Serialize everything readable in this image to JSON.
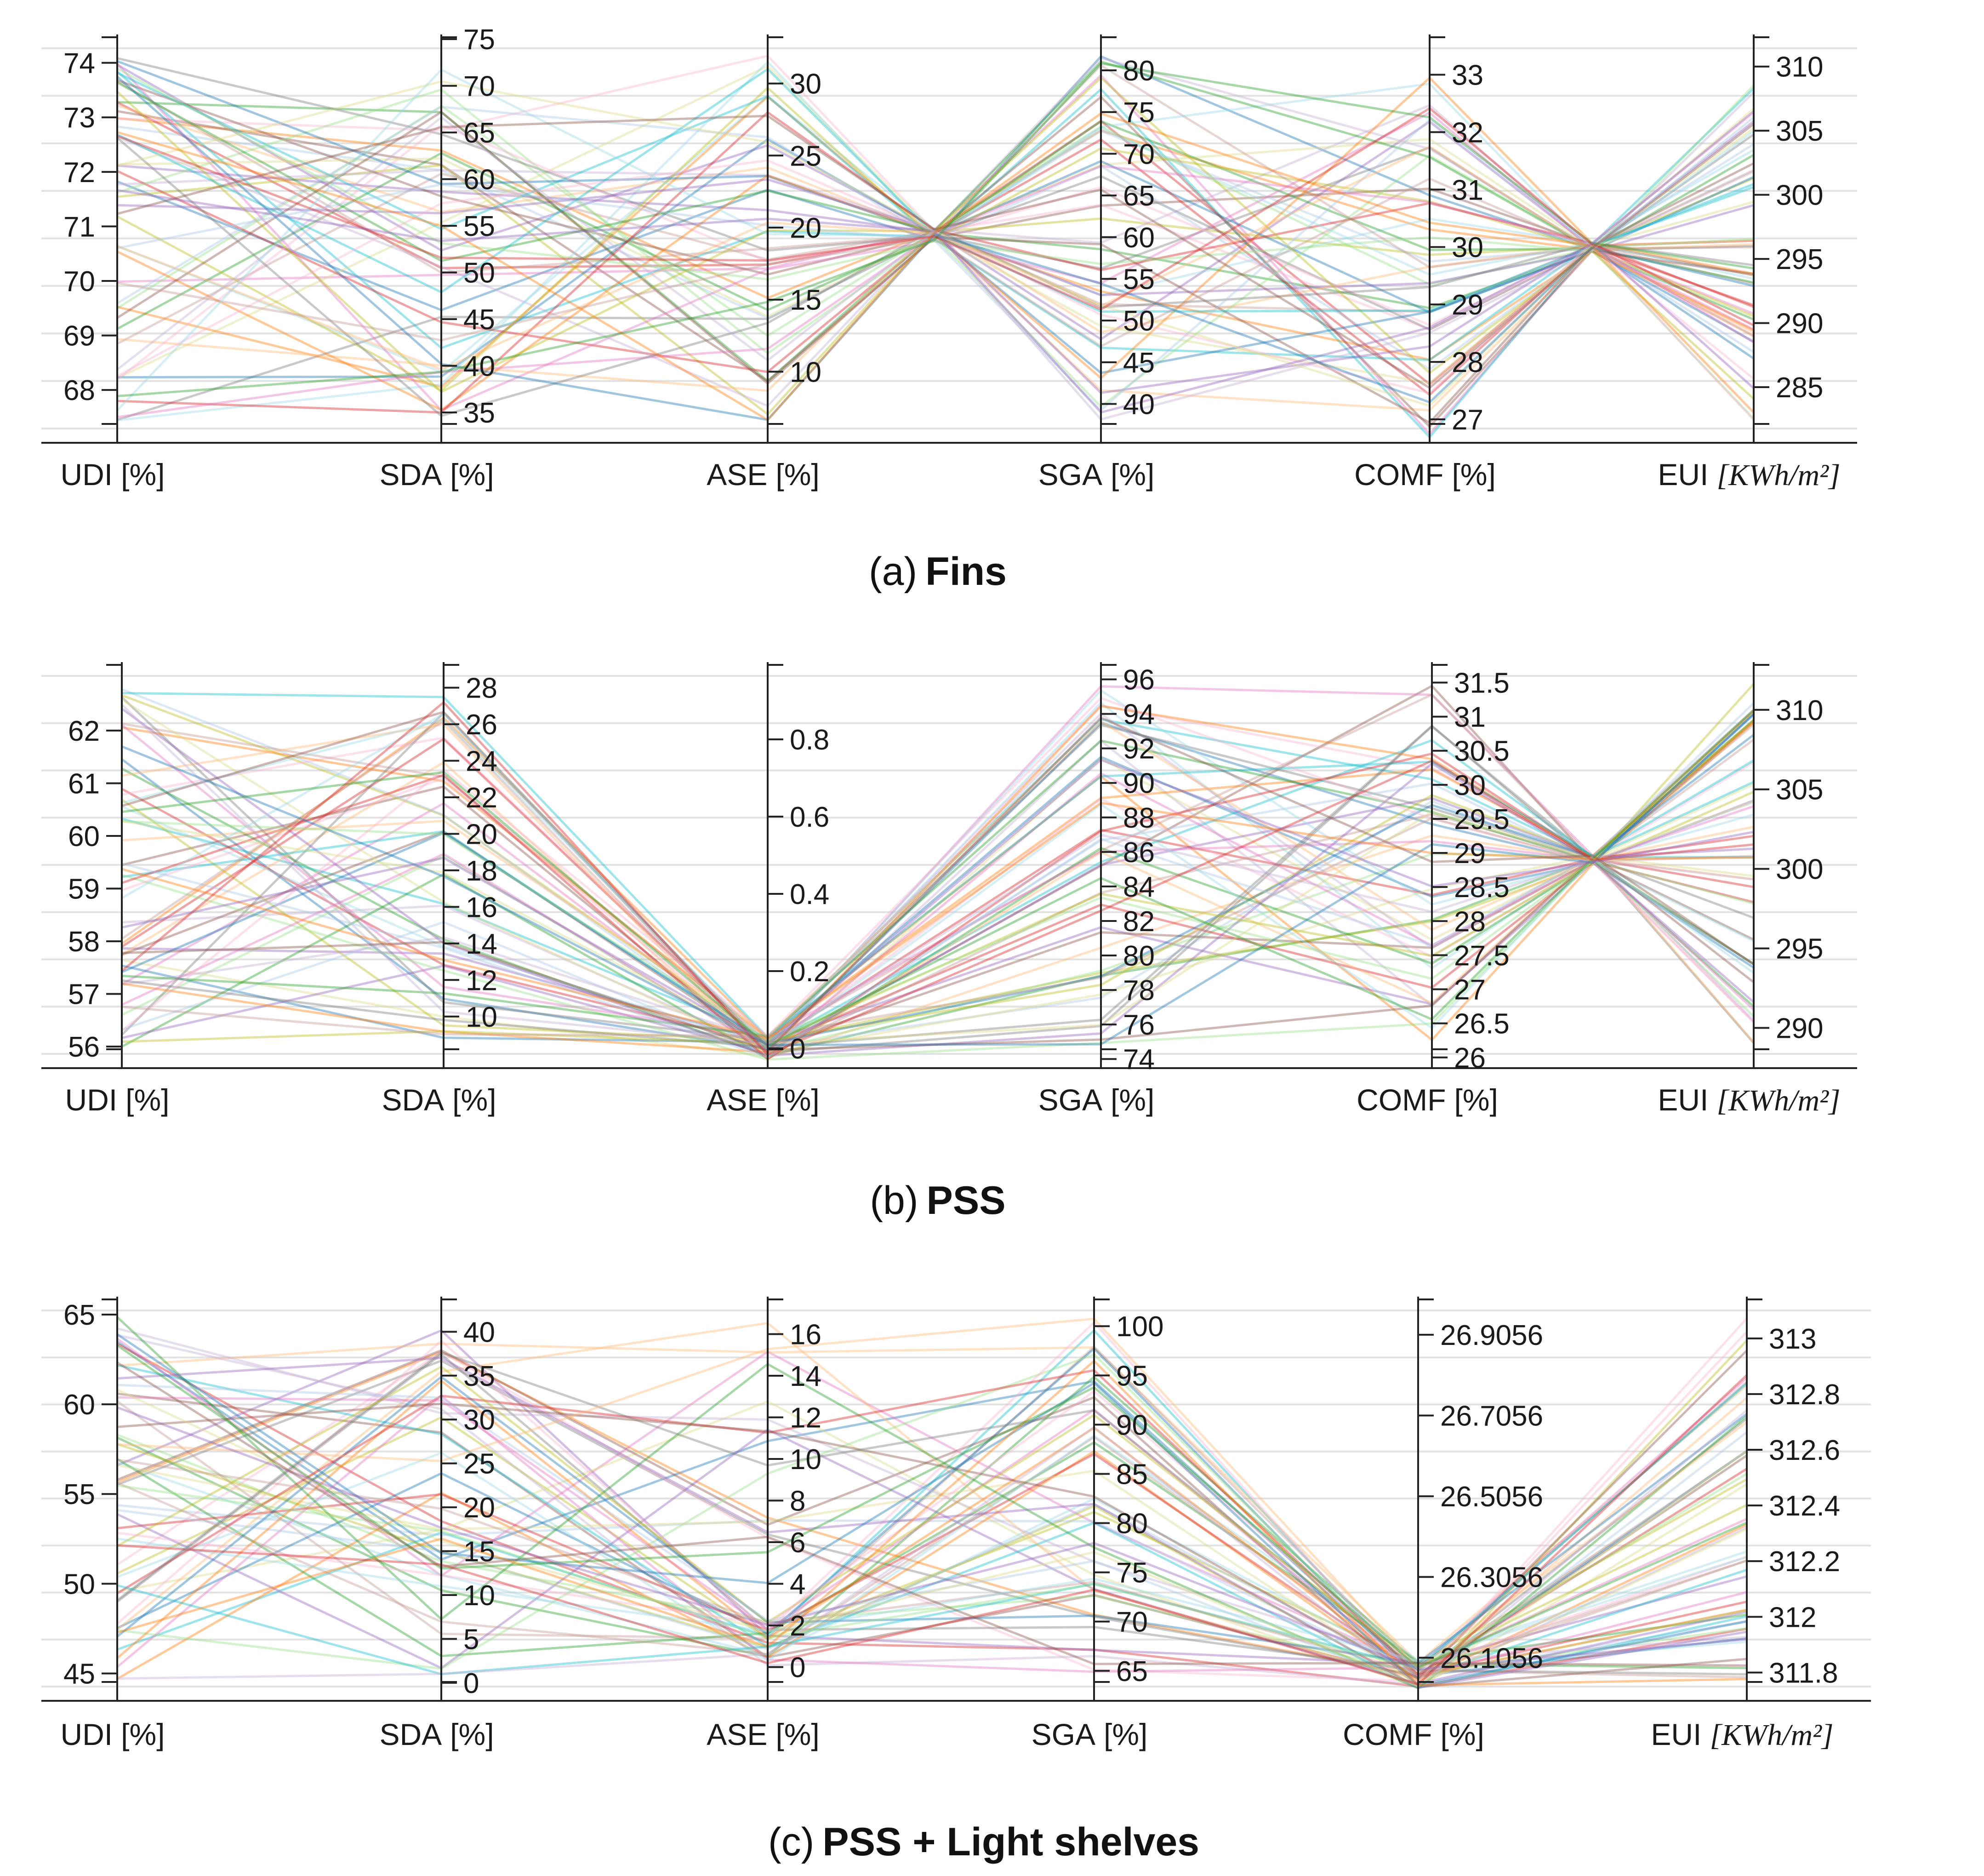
{
  "chart_data": [
    {
      "type": "parallel_coordinates",
      "caption_prefix": "(a)",
      "caption_title": "Fins",
      "axes": [
        {
          "label": "UDI",
          "unit": "[%]",
          "range": [
            67.04,
            74.52
          ],
          "ticks": [
            68,
            69,
            70,
            71,
            72,
            73,
            74
          ],
          "tick_side": "left"
        },
        {
          "label": "SDA",
          "unit": "[%]",
          "range": [
            31.8,
            75.5
          ],
          "ticks": [
            35,
            40,
            45,
            50,
            55,
            60,
            65,
            70,
            75
          ],
          "tick_side": "right"
        },
        {
          "label": "ASE",
          "unit": "[%]",
          "range": [
            5.1,
            33.4
          ],
          "ticks": [
            10,
            15,
            20,
            25,
            30
          ],
          "tick_side": "right"
        },
        {
          "label": "SGA",
          "unit": "[%]",
          "range": [
            35.4,
            84.3
          ],
          "ticks": [
            40,
            45,
            50,
            55,
            60,
            65,
            70,
            75,
            80
          ],
          "tick_side": "right"
        },
        {
          "label": "COMF",
          "unit": "[%]",
          "range": [
            26.6,
            33.7
          ],
          "ticks": [
            27,
            28,
            29,
            30,
            31,
            32,
            33
          ],
          "tick_side": "right"
        },
        {
          "label": "EUI",
          "unit": "[KWh/m²]",
          "range": [
            280.7,
            312.5
          ],
          "ticks": [
            285,
            290,
            295,
            300,
            305,
            310
          ],
          "tick_side": "right"
        }
      ],
      "samples": 60,
      "pivot_regions": [
        "ASE-SGA crossing near 20/60",
        "COMF-EUI crossing near 30/296"
      ]
    },
    {
      "type": "parallel_coordinates",
      "caption_prefix": "(b)",
      "caption_title": "PSS",
      "axes": [
        {
          "label": "UDI",
          "unit": "[%]",
          "range": [
            55.6,
            63.3
          ],
          "ticks": [
            56,
            57,
            58,
            59,
            60,
            61,
            62
          ],
          "tick_side": "left"
        },
        {
          "label": "SDA",
          "unit": "[%]",
          "range": [
            7.2,
            29.4
          ],
          "ticks": [
            10,
            12,
            14,
            16,
            18,
            20,
            22,
            24,
            26,
            28
          ],
          "tick_side": "right"
        },
        {
          "label": "ASE",
          "unit": "[%]",
          "range": [
            -0.05,
            1.0
          ],
          "ticks": [
            0,
            0.2,
            0.4,
            0.6,
            0.8
          ],
          "tick_side": "right"
        },
        {
          "label": "SGA",
          "unit": "[%]",
          "range": [
            73.5,
            97.0
          ],
          "ticks": [
            74,
            76,
            78,
            80,
            82,
            84,
            86,
            88,
            90,
            92,
            94,
            96
          ],
          "tick_side": "right"
        },
        {
          "label": "COMF",
          "unit": "[%]",
          "range": [
            25.85,
            31.8
          ],
          "ticks": [
            26,
            26.5,
            27,
            27.5,
            28,
            28.5,
            29,
            29.5,
            30,
            30.5,
            31,
            31.5
          ],
          "tick_side": "right"
        },
        {
          "label": "EUI",
          "unit": "[KWh/m²]",
          "range": [
            287.5,
            313.0
          ],
          "ticks": [
            290,
            295,
            300,
            305,
            310
          ],
          "tick_side": "right"
        }
      ],
      "samples": 60,
      "pivot_regions": [
        "ASE collapses near 0",
        "COMF-EUI crossing near 28.9/300"
      ]
    },
    {
      "type": "parallel_coordinates",
      "caption_prefix": "(c)",
      "caption_title": "PSS + Light shelves",
      "axes": [
        {
          "label": "UDI",
          "unit": "[%]",
          "range": [
            43.5,
            66.0
          ],
          "ticks": [
            45,
            50,
            55,
            60,
            65
          ],
          "tick_side": "left"
        },
        {
          "label": "SDA",
          "unit": "[%]",
          "range": [
            -2.0,
            44.0
          ],
          "ticks": [
            0,
            5,
            10,
            15,
            20,
            25,
            30,
            35,
            40
          ],
          "tick_side": "right"
        },
        {
          "label": "ASE",
          "unit": "[%]",
          "range": [
            -1.6,
            17.8
          ],
          "ticks": [
            0,
            2,
            4,
            6,
            8,
            10,
            12,
            14,
            16
          ],
          "tick_side": "right"
        },
        {
          "label": "SGA",
          "unit": "[%]",
          "range": [
            62.0,
            103.0
          ],
          "ticks": [
            65,
            70,
            75,
            80,
            85,
            90,
            95,
            100
          ],
          "tick_side": "right"
        },
        {
          "label": "COMF",
          "unit": "[%]",
          "range": [
            26.0,
            27.0
          ],
          "ticks": [
            26.1056,
            26.3056,
            26.5056,
            26.7056,
            26.9056
          ],
          "tick_side": "right"
        },
        {
          "label": "EUI",
          "unit": "[KWh/m²]",
          "range": [
            311.7,
            313.15
          ],
          "ticks": [
            311.8,
            312,
            312.2,
            312.4,
            312.6,
            312.8,
            313
          ],
          "tick_side": "right"
        }
      ],
      "samples": 60,
      "pivot_regions": [
        "COMF collapses near 26.05"
      ]
    }
  ],
  "palette": [
    "#1f77b4",
    "#ff7f0e",
    "#2ca02c",
    "#d62728",
    "#9467bd",
    "#8c564b",
    "#e377c2",
    "#7f7f7f",
    "#bcbd22",
    "#17becf",
    "#aec7e8",
    "#ffbb78",
    "#98df8a",
    "#f7b6d2",
    "#c5b0d5",
    "#c49c94",
    "#dbdb8d",
    "#9edae5"
  ]
}
